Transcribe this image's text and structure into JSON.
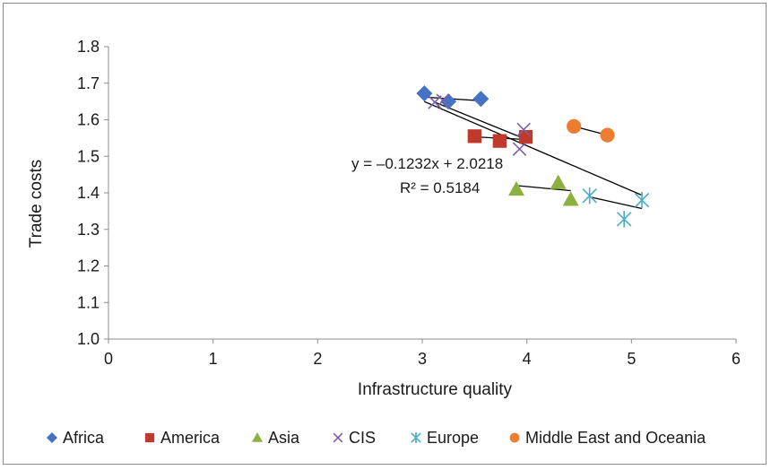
{
  "chart_data": {
    "type": "scatter",
    "title": "",
    "xlabel": "Infrastructure quality",
    "ylabel": "Trade costs",
    "xlim": [
      0,
      6
    ],
    "ylim": [
      1.0,
      1.8
    ],
    "x_ticks": [
      "0",
      "1",
      "2",
      "3",
      "4",
      "5",
      "6"
    ],
    "y_ticks": [
      "1.0",
      "1.1",
      "1.2",
      "1.3",
      "1.4",
      "1.5",
      "1.6",
      "1.7",
      "1.8"
    ],
    "grid": false,
    "legend_position": "bottom",
    "series": [
      {
        "name": "Africa",
        "marker": "diamond",
        "color": "#4472c4",
        "points": [
          [
            3.02,
            1.672
          ],
          [
            3.25,
            1.65
          ],
          [
            3.56,
            1.657
          ]
        ],
        "trend": [
          [
            3.02,
            1.662
          ],
          [
            3.56,
            1.652
          ]
        ]
      },
      {
        "name": "America",
        "marker": "square",
        "color": "#c0392b",
        "points": [
          [
            3.5,
            1.555
          ],
          [
            3.74,
            1.542
          ],
          [
            3.99,
            1.553
          ]
        ],
        "trend": [
          [
            3.5,
            1.553
          ],
          [
            3.99,
            1.546
          ]
        ]
      },
      {
        "name": "Asia",
        "marker": "triangle",
        "color": "#8db040",
        "points": [
          [
            3.9,
            1.41
          ],
          [
            4.3,
            1.428
          ],
          [
            4.42,
            1.382
          ]
        ],
        "trend": [
          [
            3.9,
            1.42
          ],
          [
            4.42,
            1.406
          ]
        ]
      },
      {
        "name": "CIS",
        "marker": "x",
        "color": "#7b5ea7",
        "points": [
          [
            3.12,
            1.648
          ],
          [
            3.2,
            1.652
          ],
          [
            3.93,
            1.52
          ],
          [
            3.97,
            1.573
          ]
        ],
        "trend": [
          [
            3.12,
            1.648
          ],
          [
            3.97,
            1.549
          ]
        ]
      },
      {
        "name": "Europe",
        "marker": "star",
        "color": "#4bacc6",
        "points": [
          [
            4.6,
            1.392
          ],
          [
            4.93,
            1.328
          ],
          [
            5.1,
            1.38
          ]
        ],
        "trend": [
          [
            4.6,
            1.389
          ],
          [
            5.1,
            1.357
          ]
        ]
      },
      {
        "name": "Middle East and Oceania",
        "marker": "circle",
        "color": "#ed7d31",
        "points": [
          [
            4.45,
            1.582
          ],
          [
            4.77,
            1.558
          ]
        ],
        "trend": [
          [
            4.45,
            1.582
          ],
          [
            4.77,
            1.558
          ]
        ]
      }
    ],
    "overall_trend": {
      "equation": "y = –0.1232x + 2.0218",
      "r_squared": "R² = 0.5184",
      "line": [
        [
          3.02,
          1.6497
        ],
        [
          5.1,
          1.3935
        ]
      ]
    }
  }
}
